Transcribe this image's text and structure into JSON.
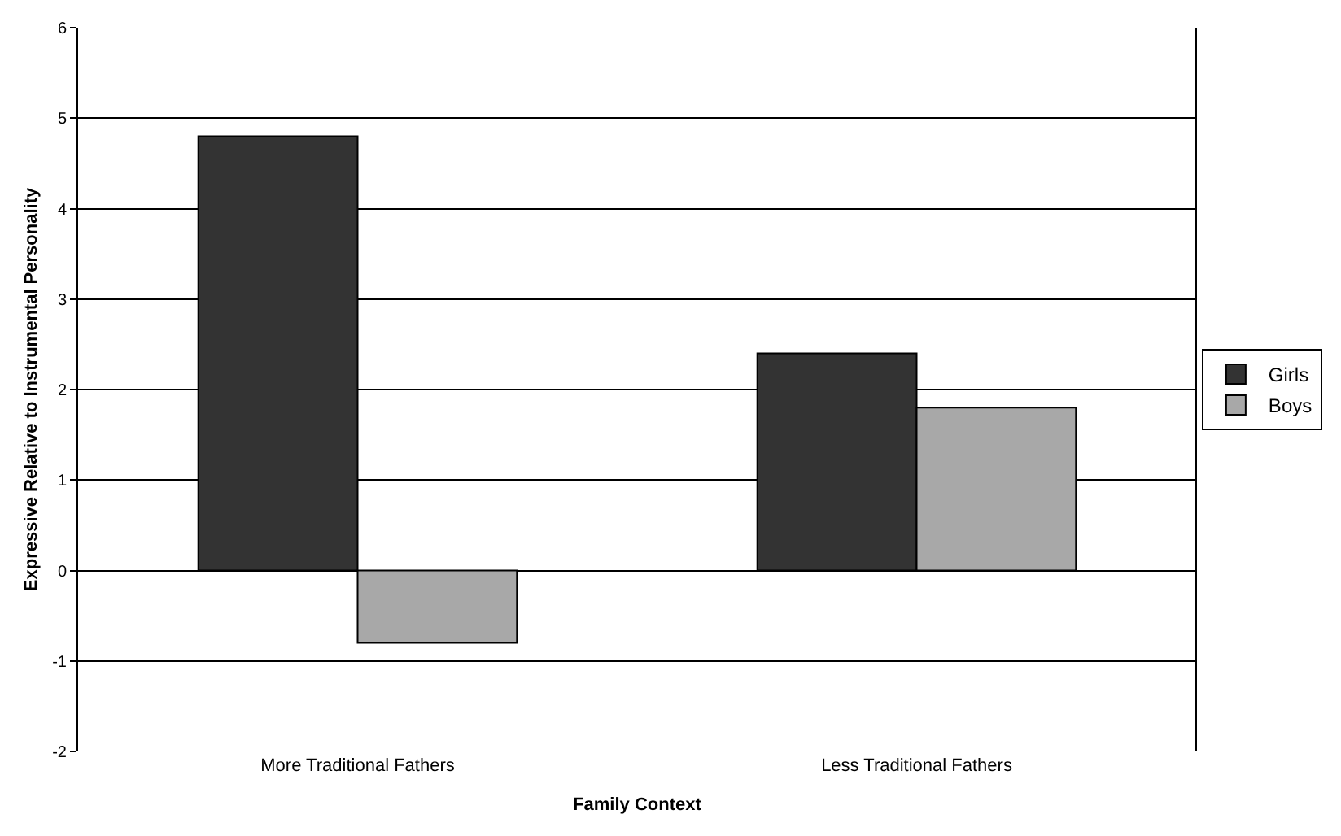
{
  "chart_data": {
    "type": "bar",
    "xlabel": "Family Context",
    "ylabel": "Expressive Relative to Instrumental Personality",
    "categories": [
      "More Traditional Fathers",
      "Less Traditional Fathers"
    ],
    "series": [
      {
        "name": "Girls",
        "color": "#333333",
        "values": [
          4.8,
          2.4
        ]
      },
      {
        "name": "Boys",
        "color": "#a8a8a8",
        "values": [
          -0.8,
          1.8
        ]
      }
    ],
    "ylim": [
      -2,
      6
    ],
    "yticks": [
      -2,
      -1,
      0,
      1,
      2,
      3,
      4,
      5,
      6
    ],
    "grid": "y",
    "legend": "right"
  }
}
